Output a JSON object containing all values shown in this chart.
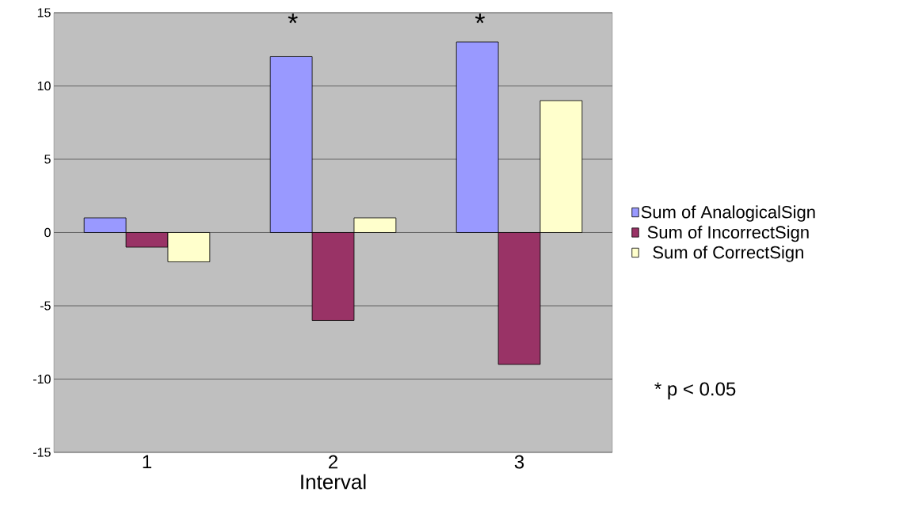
{
  "chart_data": {
    "type": "bar",
    "xlabel": "Interval",
    "categories": [
      "1",
      "2",
      "3"
    ],
    "series": [
      {
        "name": "Sum of AnalogicalSign",
        "color": "#9999ff",
        "values": [
          1,
          12,
          13
        ]
      },
      {
        "name": "Sum of IncorrectSign",
        "color": "#993366",
        "values": [
          -1,
          -6,
          -9
        ]
      },
      {
        "name": "Sum of CorrectSign",
        "color": "#ffffcc",
        "values": [
          -2,
          1,
          9
        ]
      }
    ],
    "ylim": [
      -15,
      15
    ],
    "yticks": [
      -15,
      -10,
      -5,
      0,
      5,
      10,
      15
    ],
    "grid": "y",
    "legend": "right",
    "annotations": [
      "*",
      "*",
      "* p < 0.05"
    ]
  }
}
